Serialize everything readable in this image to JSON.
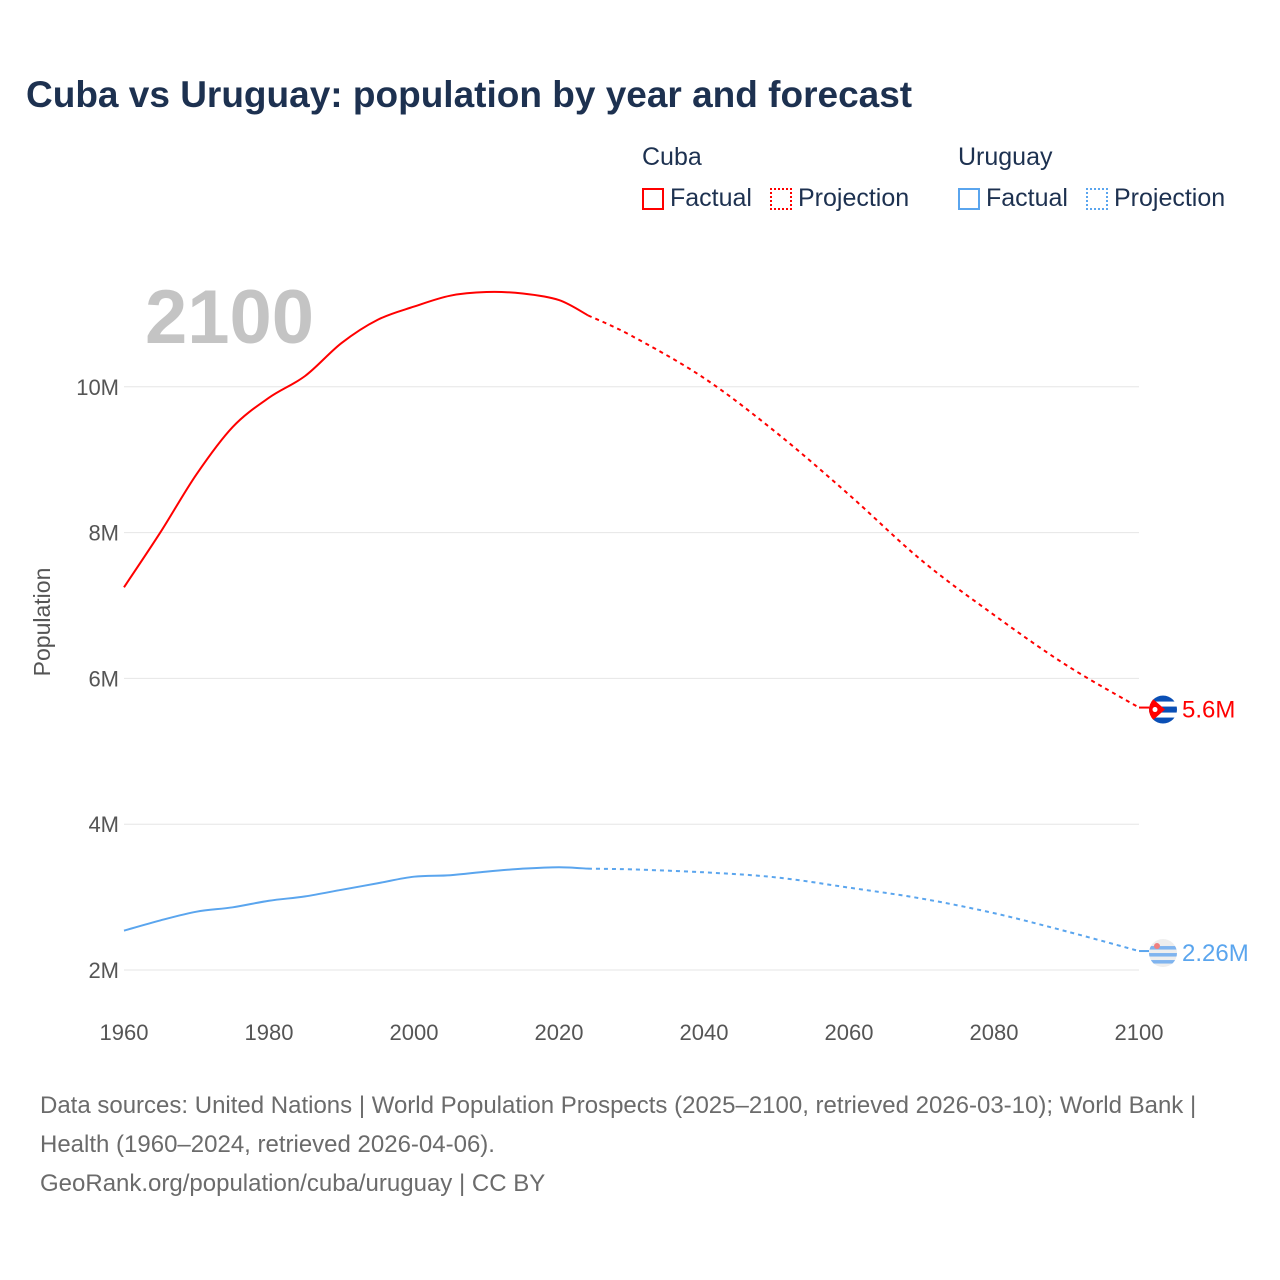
{
  "chart_data": {
    "type": "line",
    "title": "Cuba vs Uruguay: population by year and forecast",
    "ylabel": "Population",
    "xlabel": "",
    "year_label": "2100",
    "xlim": [
      1960,
      2100
    ],
    "ylim": [
      2000000,
      10000000
    ],
    "x_ticks": [
      "1960",
      "1980",
      "2000",
      "2020",
      "2040",
      "2060",
      "2080",
      "2100"
    ],
    "y_ticks": [
      {
        "v": 2000000,
        "label": "2M"
      },
      {
        "v": 4000000,
        "label": "4M"
      },
      {
        "v": 6000000,
        "label": "6M"
      },
      {
        "v": 8000000,
        "label": "8M"
      },
      {
        "v": 10000000,
        "label": "10M"
      }
    ],
    "grid": true,
    "legend_position": "top-right",
    "series": [
      {
        "name": "Cuba",
        "color": "#ff0000",
        "end_label": "5.6M",
        "flag": "cuba-flag",
        "factual": [
          [
            1960,
            7.25
          ],
          [
            1965,
            8.0
          ],
          [
            1970,
            8.8
          ],
          [
            1975,
            9.45
          ],
          [
            1980,
            9.85
          ],
          [
            1985,
            10.15
          ],
          [
            1990,
            10.6
          ],
          [
            1995,
            10.92
          ],
          [
            2000,
            11.1
          ],
          [
            2005,
            11.25
          ],
          [
            2010,
            11.3
          ],
          [
            2015,
            11.28
          ],
          [
            2020,
            11.19
          ],
          [
            2024,
            10.98
          ]
        ],
        "projection": [
          [
            2024,
            10.98
          ],
          [
            2030,
            10.7
          ],
          [
            2040,
            10.12
          ],
          [
            2050,
            9.37
          ],
          [
            2060,
            8.52
          ],
          [
            2070,
            7.62
          ],
          [
            2080,
            6.87
          ],
          [
            2090,
            6.18
          ],
          [
            2100,
            5.6
          ]
        ]
      },
      {
        "name": "Uruguay",
        "color": "#5aa5ee",
        "end_label": "2.26M",
        "flag": "uruguay-flag",
        "factual": [
          [
            1960,
            2.54
          ],
          [
            1965,
            2.68
          ],
          [
            1970,
            2.8
          ],
          [
            1975,
            2.86
          ],
          [
            1980,
            2.95
          ],
          [
            1985,
            3.01
          ],
          [
            1990,
            3.1
          ],
          [
            1995,
            3.19
          ],
          [
            2000,
            3.28
          ],
          [
            2005,
            3.3
          ],
          [
            2010,
            3.35
          ],
          [
            2015,
            3.39
          ],
          [
            2020,
            3.41
          ],
          [
            2024,
            3.39
          ]
        ],
        "projection": [
          [
            2024,
            3.39
          ],
          [
            2030,
            3.38
          ],
          [
            2040,
            3.34
          ],
          [
            2050,
            3.27
          ],
          [
            2060,
            3.13
          ],
          [
            2070,
            2.98
          ],
          [
            2080,
            2.78
          ],
          [
            2090,
            2.53
          ],
          [
            2100,
            2.26
          ]
        ]
      }
    ]
  },
  "legend": {
    "groups": [
      {
        "title": "Cuba",
        "factual": "Factual",
        "projection": "Projection",
        "color": "#ff0000"
      },
      {
        "title": "Uruguay",
        "factual": "Factual",
        "projection": "Projection",
        "color": "#5aa5ee"
      }
    ]
  },
  "footer": {
    "sources": "Data sources: United Nations | World Population Prospects (2025–2100, retrieved 2026-03-10); World Bank | Health (1960–2024, retrieved 2026-04-06).",
    "credit": "GeoRank.org/population/cuba/uruguay | CC BY"
  }
}
